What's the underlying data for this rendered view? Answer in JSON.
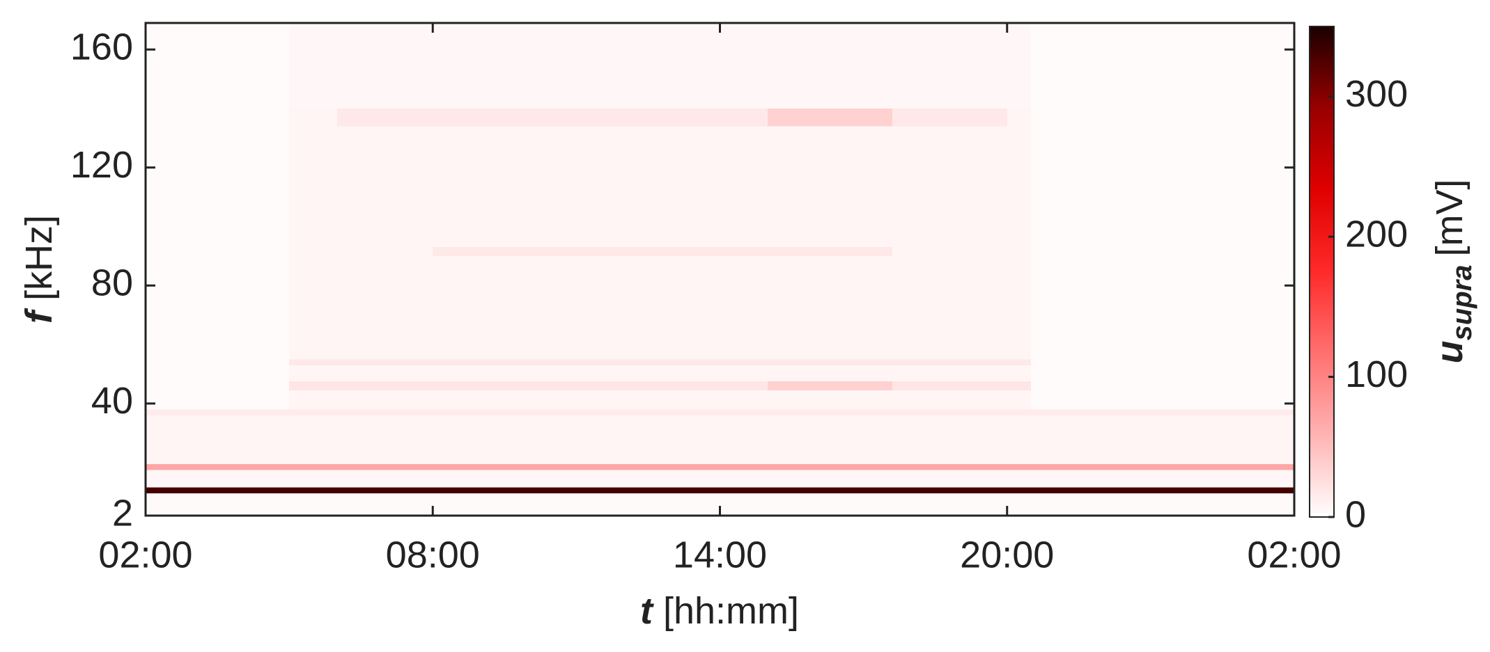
{
  "chart_data": {
    "type": "heatmap",
    "x_edges": [
      2,
      5,
      6,
      8,
      15,
      17.6,
      20,
      20.5,
      26
    ],
    "y_edges": [
      2,
      9.5,
      11.5,
      17.5,
      19.5,
      36,
      38,
      44.5,
      47.5,
      53,
      55,
      90,
      93,
      134,
      140,
      169
    ],
    "values": [
      [
        4,
        4,
        4,
        4,
        4,
        4,
        4,
        4
      ],
      [
        330,
        330,
        330,
        330,
        330,
        330,
        330,
        330
      ],
      [
        6,
        6,
        6,
        6,
        6,
        6,
        6,
        6
      ],
      [
        70,
        70,
        70,
        70,
        70,
        70,
        70,
        70
      ],
      [
        8,
        8,
        8,
        8,
        8,
        8,
        8,
        8
      ],
      [
        15,
        15,
        15,
        15,
        15,
        15,
        15,
        15
      ],
      [
        3,
        8,
        8,
        8,
        8,
        8,
        8,
        3
      ],
      [
        3,
        20,
        20,
        20,
        35,
        20,
        20,
        3
      ],
      [
        3,
        8,
        8,
        8,
        8,
        8,
        8,
        3
      ],
      [
        3,
        18,
        18,
        18,
        18,
        18,
        18,
        3
      ],
      [
        3,
        8,
        8,
        8,
        8,
        8,
        8,
        3
      ],
      [
        3,
        8,
        8,
        18,
        18,
        8,
        8,
        3
      ],
      [
        3,
        8,
        8,
        8,
        8,
        8,
        8,
        3
      ],
      [
        3,
        8,
        18,
        18,
        35,
        18,
        8,
        3
      ],
      [
        3,
        6,
        6,
        6,
        6,
        6,
        6,
        3
      ]
    ],
    "xlim": [
      2,
      26
    ],
    "xticks": [
      {
        "value": 2,
        "label": "02:00"
      },
      {
        "value": 8,
        "label": "08:00"
      },
      {
        "value": 14,
        "label": "14:00"
      },
      {
        "value": 20,
        "label": "20:00"
      },
      {
        "value": 26,
        "label": "02:00"
      }
    ],
    "ylim": [
      2,
      169
    ],
    "yticks": [
      2,
      40,
      80,
      120,
      160
    ],
    "xlabel": {
      "symbol": "t",
      "unit": "[hh:mm]"
    },
    "ylabel": {
      "symbol": "f",
      "unit": "[kHz]"
    },
    "colorbar": {
      "clim": [
        0,
        350
      ],
      "ticks": [
        0,
        100,
        200,
        300
      ],
      "label": {
        "symbol": "u",
        "subscript": "supra",
        "unit": "[mV]"
      }
    },
    "colormap": [
      "#ffffff",
      "#ffb3b3",
      "#ff7070",
      "#ff2a2a",
      "#e00000",
      "#990000",
      "#1a0000"
    ]
  }
}
